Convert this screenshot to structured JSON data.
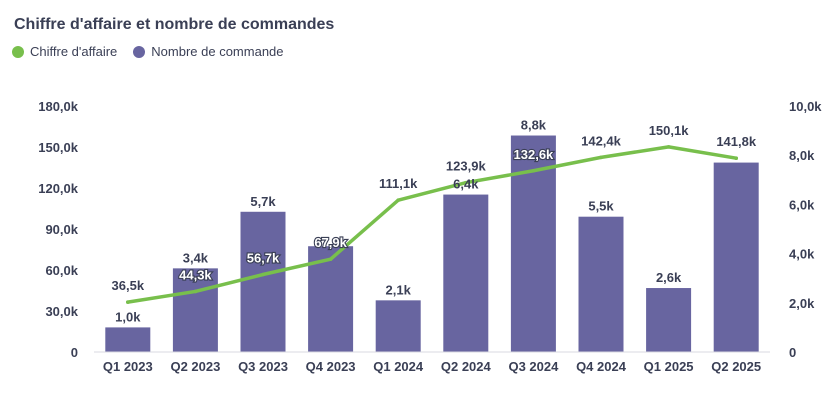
{
  "chart_data": {
    "type": "bar+line",
    "title": "Chiffre d'affaire et nombre de commandes",
    "categories": [
      "Q1 2023",
      "Q2 2023",
      "Q3 2023",
      "Q4 2023",
      "Q1 2024",
      "Q2 2024",
      "Q3 2024",
      "Q4 2024",
      "Q1 2025",
      "Q2 2025"
    ],
    "series": [
      {
        "name": "Chiffre d'affaire",
        "type": "line",
        "axis": "left",
        "values": [
          36.5,
          44.3,
          56.7,
          67.9,
          111.1,
          123.9,
          132.6,
          142.4,
          150.1,
          141.8
        ],
        "labels": [
          "36,5k",
          "44,3k",
          "56,7k",
          "67,9k",
          "111,1k",
          "123,9k",
          "132,6k",
          "142,4k",
          "150,1k",
          "141,8k"
        ],
        "color": "#78bf4c"
      },
      {
        "name": "Nombre de commande",
        "type": "bar",
        "axis": "right",
        "values": [
          1.0,
          3.4,
          5.7,
          4.3,
          2.1,
          6.4,
          8.8,
          5.5,
          2.6,
          7.7
        ],
        "labels": [
          "1,0k",
          "3,4k",
          "5,7k",
          "",
          "2,1k",
          "6,4k",
          "8,8k",
          "5,5k",
          "2,6k",
          ""
        ],
        "color": "#6865a0"
      }
    ],
    "y_left": {
      "min": 0,
      "max": 180,
      "ticks": [
        "0",
        "30,0k",
        "60,0k",
        "90,0k",
        "120,0k",
        "150,0k",
        "180,0k"
      ]
    },
    "y_right": {
      "min": 0,
      "max": 10,
      "ticks": [
        "0",
        "2,0k",
        "4,0k",
        "6,0k",
        "8,0k",
        "10,0k"
      ]
    },
    "grid": false,
    "legend_position": "top-left"
  }
}
